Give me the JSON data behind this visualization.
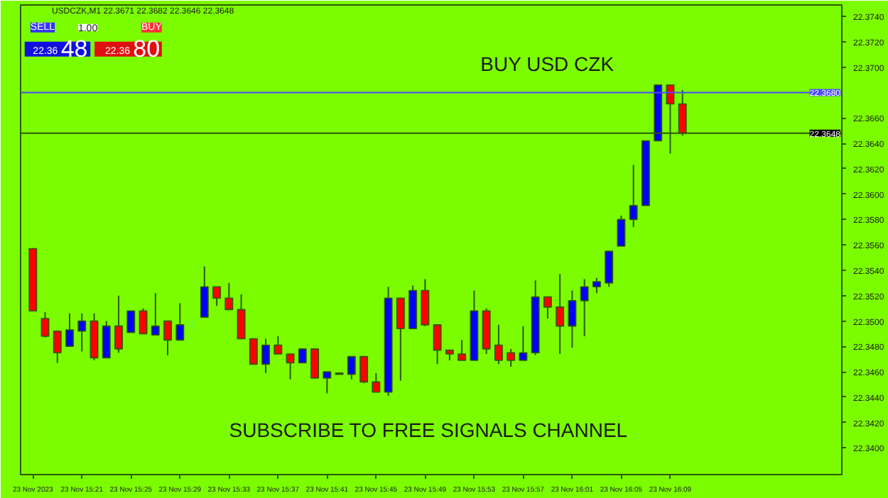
{
  "chart_data": {
    "type": "candlestick",
    "title": "BUY USD CZK",
    "subtitle": "USDCZK,M1 22.3671 22.3682 22.3646 22.3648",
    "annotations": [
      "SUBSCRIBE  TO FREE SIGNALS CHANNEL",
      "SELL",
      "1.00",
      "BUY",
      "22.36",
      "48",
      "22.36",
      "80"
    ],
    "x": [
      "2023-11-23T15:17",
      "2023-11-23T15:18",
      "2023-11-23T15:19",
      "2023-11-23T15:20",
      "2023-11-23T15:21",
      "2023-11-23T15:22",
      "2023-11-23T15:23",
      "2023-11-23T15:24",
      "2023-11-23T15:25",
      "2023-11-23T15:26",
      "2023-11-23T15:27",
      "2023-11-23T15:28",
      "2023-11-23T15:29",
      "2023-11-23T15:30",
      "2023-11-23T15:31",
      "2023-11-23T15:32",
      "2023-11-23T15:33",
      "2023-11-23T15:34",
      "2023-11-23T15:35",
      "2023-11-23T15:36",
      "2023-11-23T15:37",
      "2023-11-23T15:38",
      "2023-11-23T15:39",
      "2023-11-23T15:40",
      "2023-11-23T15:41",
      "2023-11-23T15:42",
      "2023-11-23T15:43",
      "2023-11-23T15:44",
      "2023-11-23T15:45",
      "2023-11-23T15:46",
      "2023-11-23T15:47",
      "2023-11-23T15:48",
      "2023-11-23T15:49",
      "2023-11-23T15:50",
      "2023-11-23T15:51",
      "2023-11-23T15:52",
      "2023-11-23T15:53",
      "2023-11-23T15:54",
      "2023-11-23T15:55",
      "2023-11-23T15:56",
      "2023-11-23T15:57",
      "2023-11-23T15:58",
      "2023-11-23T15:59",
      "2023-11-23T16:00",
      "2023-11-23T16:01",
      "2023-11-23T16:02",
      "2023-11-23T16:03",
      "2023-11-23T16:04",
      "2023-11-23T16:05",
      "2023-11-23T16:06",
      "2023-11-23T16:07",
      "2023-11-23T16:08",
      "2023-11-23T16:09",
      "2023-11-23T16:10"
    ],
    "ohlc": [
      [
        22.3557,
        22.3557,
        22.3508,
        22.3508
      ],
      [
        22.3502,
        22.3507,
        22.3487,
        22.3488
      ],
      [
        22.3492,
        22.3492,
        22.3467,
        22.3475
      ],
      [
        22.348,
        22.3506,
        22.348,
        22.3493
      ],
      [
        22.3492,
        22.3506,
        22.3476,
        22.35
      ],
      [
        22.35,
        22.3506,
        22.3469,
        22.3471
      ],
      [
        22.3471,
        22.35,
        22.3471,
        22.3496
      ],
      [
        22.3496,
        22.352,
        22.3475,
        22.3478
      ],
      [
        22.3491,
        22.3508,
        22.3491,
        22.3508
      ],
      [
        22.3508,
        22.351,
        22.349,
        22.349
      ],
      [
        22.3489,
        22.3522,
        22.3489,
        22.3496
      ],
      [
        22.35,
        22.35,
        22.3473,
        22.3485
      ],
      [
        22.3485,
        22.3514,
        22.3485,
        22.3497
      ],
      [
        22.3497,
        22.3501,
        22.3493,
        22.3497
      ],
      [
        22.3503,
        22.3543,
        22.3503,
        22.3527
      ],
      [
        22.3527,
        22.3527,
        22.3512,
        22.3518
      ],
      [
        22.3518,
        22.353,
        22.3509,
        22.3509
      ],
      [
        22.3509,
        22.3521,
        22.3486,
        22.3486
      ],
      [
        22.3486,
        22.3486,
        22.3466,
        22.3466
      ],
      [
        22.3466,
        22.3486,
        22.3459,
        22.3481
      ],
      [
        22.3481,
        22.3488,
        22.3474,
        22.3474
      ],
      [
        22.3474,
        22.3474,
        22.3454,
        22.3467
      ],
      [
        22.3467,
        22.3478,
        22.3467,
        22.3478
      ],
      [
        22.3478,
        22.3478,
        22.3455,
        22.3455
      ],
      [
        22.3455,
        22.346,
        22.3443,
        22.346
      ],
      [
        22.3459,
        22.3459,
        22.3458,
        22.3458
      ],
      [
        22.3458,
        22.3472,
        22.3454,
        22.3472
      ],
      [
        22.3472,
        22.3472,
        22.3451,
        22.3452
      ],
      [
        22.3452,
        22.3459,
        22.3444,
        22.3444
      ],
      [
        22.3444,
        22.3527,
        22.3441,
        22.3518
      ],
      [
        22.3518,
        22.3518,
        22.3453,
        22.3494
      ],
      [
        22.3494,
        22.3528,
        22.3494,
        22.3524
      ],
      [
        22.3524,
        22.3533,
        22.3496,
        22.3497
      ],
      [
        22.3497,
        22.3497,
        22.3466,
        22.3477
      ],
      [
        22.3477,
        22.3477,
        22.3469,
        22.3474
      ],
      [
        22.3474,
        22.3485,
        22.3469,
        22.3469
      ],
      [
        22.3469,
        22.3524,
        22.3469,
        22.3508
      ],
      [
        22.3508,
        22.351,
        22.3474,
        22.3478
      ],
      [
        22.3481,
        22.3497,
        22.3466,
        22.3469
      ],
      [
        22.3475,
        22.3478,
        22.3464,
        22.3469
      ],
      [
        22.3469,
        22.3496,
        22.3469,
        22.3475
      ],
      [
        22.3475,
        22.3532,
        22.3473,
        22.3519
      ],
      [
        22.3519,
        22.3519,
        22.3502,
        22.3511
      ],
      [
        22.3511,
        22.3537,
        22.3474,
        22.3496
      ],
      [
        22.3496,
        22.3524,
        22.3479,
        22.3516
      ],
      [
        22.3516,
        22.3533,
        22.3488,
        22.3527
      ],
      [
        22.3527,
        22.3534,
        22.3522,
        22.3531
      ],
      [
        22.353,
        22.3555,
        22.3527,
        22.3555
      ],
      [
        22.3559,
        22.3583,
        22.3559,
        22.358
      ],
      [
        22.358,
        22.3623,
        22.3574,
        22.3591
      ],
      [
        22.3591,
        22.3642,
        22.3591,
        22.3642
      ],
      [
        22.3642,
        22.3686,
        22.3642,
        22.3686
      ],
      [
        22.3686,
        22.3686,
        22.3632,
        22.3671
      ],
      [
        22.3671,
        22.3682,
        22.3646,
        22.3648
      ]
    ],
    "colors": [
      "#ff0000",
      "#ff0000",
      "#ff0000",
      "#0000ff",
      "#0000ff",
      "#ff0000",
      "#0000ff",
      "#ff0000",
      "#0000ff",
      "#ff0000",
      "#0000ff",
      "#ff0000",
      "#0000ff",
      "#66ff33",
      "#0000ff",
      "#ff0000",
      "#ff0000",
      "#ff0000",
      "#ff0000",
      "#0000ff",
      "#ff0000",
      "#ff0000",
      "#0000ff",
      "#ff0000",
      "#0000ff",
      "#ff0000",
      "#0000ff",
      "#ff0000",
      "#ff0000",
      "#0000ff",
      "#ff0000",
      "#0000ff",
      "#ff0000",
      "#ff0000",
      "#ff0000",
      "#ff0000",
      "#0000ff",
      "#ff0000",
      "#ff0000",
      "#ff0000",
      "#0000ff",
      "#0000ff",
      "#ff0000",
      "#ff0000",
      "#0000ff",
      "#0000ff",
      "#0000ff",
      "#0000ff",
      "#0000ff",
      "#0000ff",
      "#0000ff",
      "#0000ff",
      "#ff0000",
      "#ff0000"
    ],
    "xlim": [
      "2023-11-23T15:16",
      "2023-11-23T16:23"
    ],
    "xticks": [
      {
        "value": "2023-11-23T15:17",
        "label": "23 Nov 2023"
      },
      {
        "value": "2023-11-23T15:21",
        "label": "23 Nov 15:21"
      },
      {
        "value": "2023-11-23T15:25",
        "label": "23 Nov 15:25"
      },
      {
        "value": "2023-11-23T15:29",
        "label": "23 Nov 15:29"
      },
      {
        "value": "2023-11-23T15:33",
        "label": "23 Nov 15:33"
      },
      {
        "value": "2023-11-23T15:37",
        "label": "23 Nov 15:37"
      },
      {
        "value": "2023-11-23T15:41",
        "label": "23 Nov 15:41"
      },
      {
        "value": "2023-11-23T15:45",
        "label": "23 Nov 15:45"
      },
      {
        "value": "2023-11-23T15:49",
        "label": "23 Nov 15:49"
      },
      {
        "value": "2023-11-23T15:53",
        "label": "23 Nov 15:53"
      },
      {
        "value": "2023-11-23T15:57",
        "label": "23 Nov 15:57"
      },
      {
        "value": "2023-11-23T16:01",
        "label": "23 Nov 16:01"
      },
      {
        "value": "2023-11-23T16:05",
        "label": "23 Nov 16:05"
      },
      {
        "value": "2023-11-23T16:09",
        "label": "23 Nov 16:09"
      }
    ],
    "ylim": [
      22.3379,
      22.3749
    ],
    "yticks": [
      {
        "value": 22.34,
        "label": "22.3400"
      },
      {
        "value": 22.342,
        "label": "22.3420"
      },
      {
        "value": 22.344,
        "label": "22.3440"
      },
      {
        "value": 22.346,
        "label": "22.3460"
      },
      {
        "value": 22.348,
        "label": "22.3480"
      },
      {
        "value": 22.35,
        "label": "22.3500"
      },
      {
        "value": 22.352,
        "label": "22.3520"
      },
      {
        "value": 22.354,
        "label": "22.3540"
      },
      {
        "value": 22.356,
        "label": "22.3560"
      },
      {
        "value": 22.358,
        "label": "22.3580"
      },
      {
        "value": 22.36,
        "label": "22.3600"
      },
      {
        "value": 22.362,
        "label": "22.3620"
      },
      {
        "value": 22.364,
        "label": "22.3640"
      },
      {
        "value": 22.366,
        "label": "22.3660"
      },
      {
        "value": 22.37,
        "label": "22.3700"
      },
      {
        "value": 22.372,
        "label": "22.3720"
      },
      {
        "value": 22.374,
        "label": "22.3740"
      }
    ],
    "ref_lines": [
      {
        "axis": "y",
        "value": 22.368,
        "label": "22.3680",
        "color": "#4a4aff"
      },
      {
        "axis": "y",
        "value": 22.3648,
        "label": "22.3648",
        "color": "#2d5a00"
      }
    ]
  }
}
